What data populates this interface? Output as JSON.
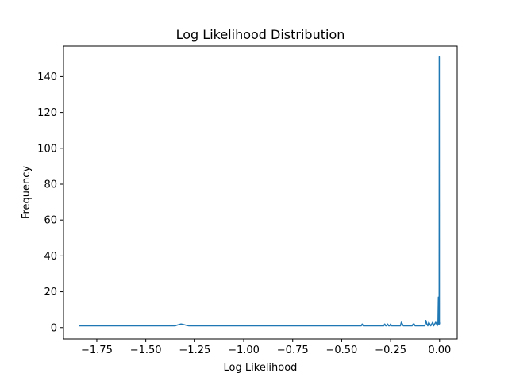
{
  "chart_data": {
    "type": "line",
    "title": "Log Likelihood Distribution",
    "xlabel": "Log Likelihood",
    "ylabel": "Frequency",
    "xlim": [
      -1.92,
      0.09
    ],
    "ylim": [
      -6.3,
      157
    ],
    "xticks": [
      -1.75,
      -1.5,
      -1.25,
      -1.0,
      -0.75,
      -0.5,
      -0.25,
      0.0
    ],
    "xtick_labels": [
      "−1.75",
      "−1.50",
      "−1.25",
      "−1.00",
      "−0.75",
      "−0.50",
      "−0.25",
      "0.00"
    ],
    "yticks": [
      0,
      20,
      40,
      60,
      80,
      100,
      120,
      140
    ],
    "ytick_labels": [
      "0",
      "20",
      "40",
      "60",
      "80",
      "100",
      "120",
      "140"
    ],
    "grid": false,
    "line_color": "#1f77b4",
    "series": [
      {
        "x": [
          -1.84,
          -1.35,
          -1.34,
          -1.32,
          -1.31,
          -1.29,
          -1.28,
          -1.26,
          -1.24,
          -0.4,
          -0.395,
          -0.39,
          -0.385,
          -0.3,
          -0.285,
          -0.28,
          -0.275,
          -0.27,
          -0.265,
          -0.26,
          -0.255,
          -0.25,
          -0.245,
          -0.24,
          -0.235,
          -0.2,
          -0.195,
          -0.19,
          -0.185,
          -0.14,
          -0.135,
          -0.13,
          -0.125,
          -0.075,
          -0.07,
          -0.065,
          -0.06,
          -0.055,
          -0.05,
          -0.045,
          -0.04,
          -0.035,
          -0.03,
          -0.025,
          -0.02,
          -0.015,
          -0.012,
          -0.01,
          -0.008,
          -0.006,
          -0.005,
          -0.004,
          -0.003,
          -0.002,
          -0.0015,
          -0.001,
          -0.0005,
          0.0
        ],
        "y": [
          1,
          1,
          1.4,
          2.0,
          1.8,
          1.2,
          1,
          1,
          1,
          1,
          2,
          1,
          1,
          1,
          1,
          2,
          1,
          1,
          2,
          1,
          1,
          2,
          1,
          1,
          1,
          1,
          3,
          2,
          1,
          1,
          2,
          2,
          1,
          1,
          4,
          2,
          1,
          3,
          2,
          1,
          2,
          3,
          1,
          2,
          3,
          2,
          1,
          2,
          3,
          17,
          2,
          5,
          3,
          2,
          151,
          2,
          3,
          2
        ]
      }
    ]
  }
}
